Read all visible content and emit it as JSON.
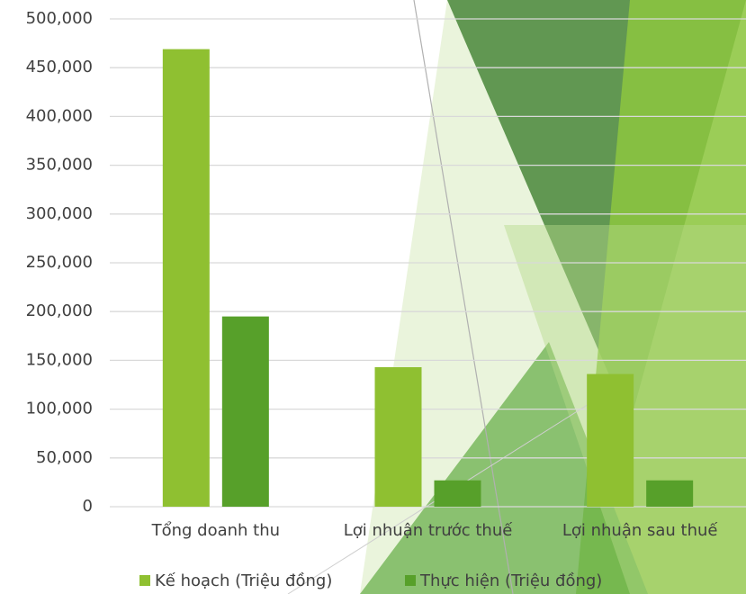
{
  "chart_data": {
    "type": "bar",
    "categories": [
      "Tổng doanh thu",
      "Lợi nhuận trước thuế",
      "Lợi nhuận sau thuế"
    ],
    "series": [
      {
        "name": "Kế hoạch (Triệu đồng)",
        "color": "#8fc031",
        "values": [
          469000,
          143000,
          136000
        ]
      },
      {
        "name": "Thực hiện (Triệu đồng)",
        "color": "#57a02a",
        "values": [
          195000,
          27000,
          27000
        ]
      }
    ],
    "ylim": [
      0,
      500000
    ],
    "yticks": [
      0,
      {
        "value": 50000,
        "label": "50,000"
      },
      {
        "value": 100000,
        "label": "100,000"
      },
      {
        "value": 150000,
        "label": "150,000"
      },
      {
        "value": 200000,
        "label": "200,000"
      },
      {
        "value": 250000,
        "label": "250,000"
      },
      {
        "value": 300000,
        "label": "300,000"
      },
      {
        "value": 350000,
        "label": "350,000"
      },
      {
        "value": 400000,
        "label": "400,000"
      },
      {
        "value": 450000,
        "label": "450,000"
      },
      {
        "value": 500000,
        "label": "500,000"
      }
    ],
    "grid": true
  }
}
